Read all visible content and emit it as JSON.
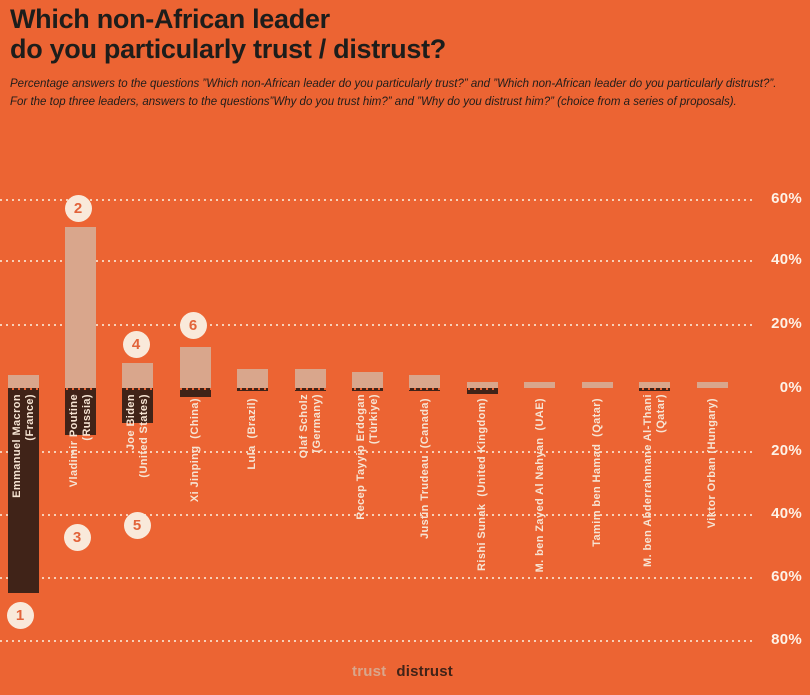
{
  "header": {
    "title_line1": "Which non-African leader",
    "title_line2": "do you particularly trust / distrust?",
    "subtitle": "Percentage answers to the questions ”Which non-African leader do you particularly trust?” and ”Which non-African leader do you particularly distrust?”. For the top three leaders, answers to the questions”Why do you trust him?” and ”Why do you distrust him?” (choice from a series of proposals)."
  },
  "legend": {
    "trust_label": "trust",
    "distrust_label": "distrust"
  },
  "axis": {
    "tick_labels_top_to_bottom": [
      "60%",
      "40%",
      "20%",
      "0%",
      "20%",
      "40%",
      "60%",
      "80%"
    ],
    "upper_max_percent": 60,
    "lower_max_percent": 80,
    "gridlines": "dotted"
  },
  "colors": {
    "background": "#EC6433",
    "trust_bar": "#D9A68C",
    "distrust_bar": "#402318",
    "grid": "#F9E3D0",
    "tick_text": "#FDF2E7",
    "bar_label_text": "#F6E4D3",
    "badge_background": "#F9E9DA",
    "badge_number": "#E2633A",
    "title_text": "#1D1D1B"
  },
  "chart_data": {
    "type": "bar",
    "orientation": "diverging-vertical",
    "unit": "%",
    "title": "Which non-African leader do you particularly trust / distrust?",
    "categories": [
      "Emmanuel Macron (France)",
      "Vladimir Poutine (Russia)",
      "Joe Biden (United States)",
      "Xi Jinping (China)",
      "Lula (Brazil)",
      "Olaf Scholz (Germany)",
      "Recep Tayyip Erdogan (Türkiye)",
      "Justin Trudeau (Canada)",
      "Rishi Sunak (United Kingdom)",
      "M. ben Zayed Al Nahyan (UAE)",
      "Tamim ben Hamad (Qatar)",
      "M. ben Abderrahmane Al-Thani (Qatar)",
      "Viktor Orban (Hungary)"
    ],
    "category_label_lines": [
      [
        "Emmanuel Macron",
        "(France)"
      ],
      [
        "Vladimir Poutine",
        "(Russia)"
      ],
      [
        "Joe Biden",
        "(United States)"
      ],
      [
        "Xi Jinping  (China)"
      ],
      [
        "Lula  (Brazil)"
      ],
      [
        "Olaf Scholz",
        "(Germany)"
      ],
      [
        "Recep Tayyip Erdogan",
        "(Türkiye)"
      ],
      [
        "Justin Trudeau  (Canada)"
      ],
      [
        "Rishi Sunak  (United Kingdom)"
      ],
      [
        "M. ben Zayed Al Nahyan  (UAE)"
      ],
      [
        "Tamim ben Hamad  (Qatar)"
      ],
      [
        "M. ben Abderrahmane Al-Thani",
        "(Qatar)"
      ],
      [
        "Viktor Orban (Hungary)"
      ]
    ],
    "series": [
      {
        "name": "trust",
        "direction": "up",
        "values": [
          4,
          51,
          8,
          13,
          6,
          6,
          5,
          4,
          2,
          2,
          2,
          2,
          2
        ]
      },
      {
        "name": "distrust",
        "direction": "down",
        "values": [
          65,
          15,
          11,
          3,
          1,
          1,
          1,
          1,
          2,
          0,
          0,
          1,
          0
        ]
      }
    ],
    "badges": [
      {
        "label": "1",
        "category_index": 0,
        "placement": "below"
      },
      {
        "label": "2",
        "category_index": 1,
        "placement": "above"
      },
      {
        "label": "3",
        "category_index": 1,
        "placement": "below"
      },
      {
        "label": "4",
        "category_index": 2,
        "placement": "above"
      },
      {
        "label": "5",
        "category_index": 2,
        "placement": "below"
      },
      {
        "label": "6",
        "category_index": 3,
        "placement": "above"
      }
    ]
  }
}
